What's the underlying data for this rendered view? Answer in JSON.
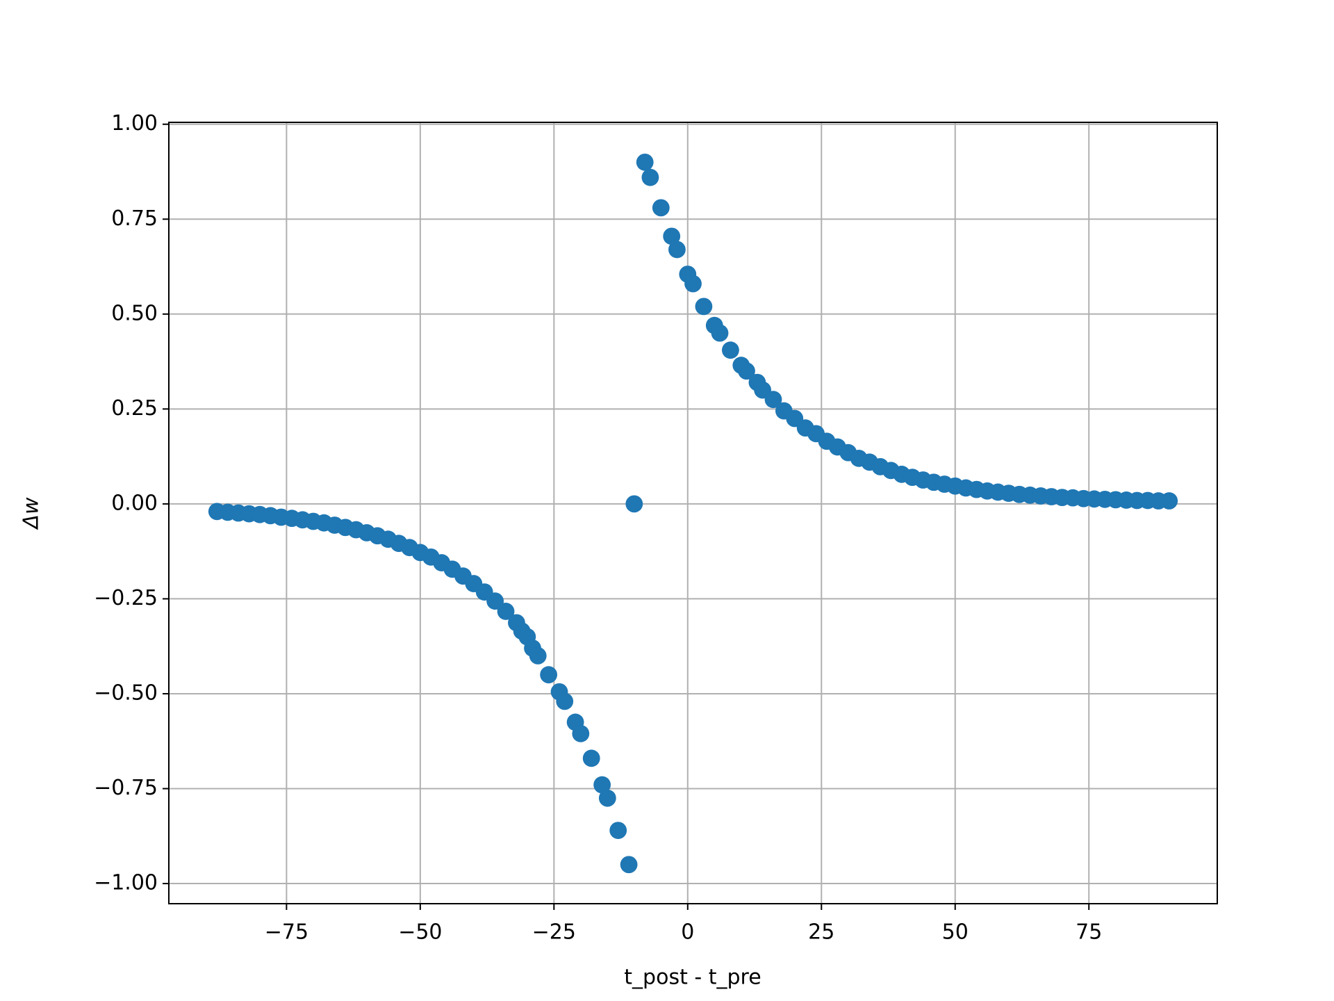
{
  "chart_data": {
    "type": "scatter",
    "x_label": "t_post - t_pre",
    "y_label": "Δw",
    "color": "#1f77b4",
    "grid": true,
    "x": [
      -88,
      -86,
      -84,
      -82,
      -80,
      -78,
      -76,
      -74,
      -72,
      -70,
      -68,
      -66,
      -64,
      -62,
      -60,
      -58,
      -56,
      -54,
      -52,
      -50,
      -48,
      -46,
      -44,
      -42,
      -40,
      -38,
      -36,
      -34,
      -32,
      -31,
      -30,
      -29,
      -28,
      -26,
      -24,
      -23,
      -21,
      -20,
      -18,
      -16,
      -15,
      -13,
      -11,
      -10,
      -8,
      -7,
      -5,
      -3,
      -2,
      0,
      1,
      3,
      5,
      6,
      8,
      10,
      11,
      13,
      14,
      16,
      18,
      20,
      22,
      24,
      26,
      28,
      30,
      32,
      34,
      36,
      38,
      40,
      42,
      44,
      46,
      48,
      50,
      52,
      54,
      56,
      58,
      60,
      62,
      64,
      66,
      68,
      70,
      72,
      74,
      76,
      78,
      80,
      82,
      84,
      86,
      88,
      90
    ],
    "values": [
      -0.02,
      -0.022,
      -0.024,
      -0.026,
      -0.028,
      -0.031,
      -0.035,
      -0.038,
      -0.042,
      -0.046,
      -0.05,
      -0.056,
      -0.062,
      -0.068,
      -0.076,
      -0.084,
      -0.093,
      -0.104,
      -0.115,
      -0.128,
      -0.14,
      -0.155,
      -0.172,
      -0.19,
      -0.21,
      -0.232,
      -0.256,
      -0.283,
      -0.313,
      -0.335,
      -0.35,
      -0.38,
      -0.4,
      -0.45,
      -0.495,
      -0.52,
      -0.575,
      -0.605,
      -0.67,
      -0.74,
      -0.775,
      -0.86,
      -0.95,
      0,
      0.9,
      0.86,
      0.78,
      0.705,
      0.67,
      0.605,
      0.58,
      0.52,
      0.47,
      0.45,
      0.405,
      0.365,
      0.35,
      0.32,
      0.3,
      0.275,
      0.245,
      0.225,
      0.2,
      0.185,
      0.165,
      0.15,
      0.135,
      0.12,
      0.11,
      0.098,
      0.088,
      0.078,
      0.07,
      0.063,
      0.057,
      0.052,
      0.047,
      0.042,
      0.038,
      0.034,
      0.031,
      0.028,
      0.025,
      0.023,
      0.021,
      0.019,
      0.017,
      0.016,
      0.014,
      0.013,
      0.012,
      0.011,
      0.01,
      0.009,
      0.009,
      0.008,
      0.008
    ],
    "xlim": [
      -97,
      99
    ],
    "ylim": [
      -1.053,
      1.005
    ],
    "xticks": [
      {
        "value": -75,
        "label": "−75"
      },
      {
        "value": -50,
        "label": "−50"
      },
      {
        "value": -25,
        "label": "−25"
      },
      0,
      25,
      50,
      75
    ],
    "yticks": [
      {
        "value": -1,
        "label": "−1.00"
      },
      {
        "value": -0.75,
        "label": "−0.75"
      },
      {
        "value": -0.5,
        "label": "−0.50"
      },
      {
        "value": -0.25,
        "label": "−0.25"
      },
      {
        "value": 0,
        "label": "0.00"
      },
      0.25,
      {
        "value": 0.5,
        "label": "0.50"
      },
      0.75,
      {
        "value": 1,
        "label": "1.00"
      }
    ]
  }
}
